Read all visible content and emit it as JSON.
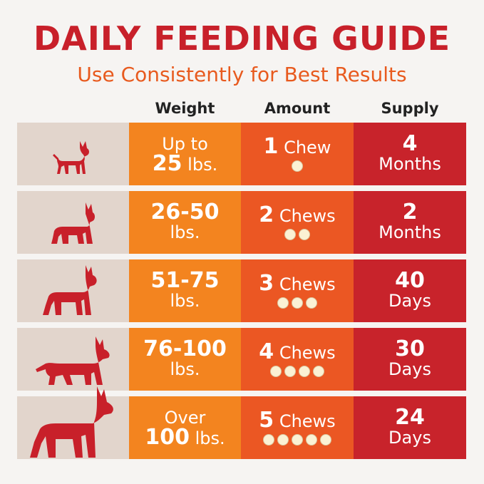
{
  "title": "DAILY FEEDING GUIDE",
  "subtitle": "Use Consistently for Best Results",
  "headers": {
    "weight": "Weight",
    "amount": "Amount",
    "supply": "Supply"
  },
  "colors": {
    "title": "#c8202a",
    "subtitle": "#e85a1e",
    "dog_cell": "#e2d5cc",
    "weight_cell": "#f3841f",
    "amount_cell": "#eb5723",
    "supply_cell": "#c8232b",
    "chew_dot": "#fbf1d4"
  },
  "rows": [
    {
      "dog_icon": "small-chihuahua-icon",
      "weight_line1": "Up to",
      "weight_line2": "25",
      "weight_line2_unit": "lbs.",
      "amount_count": "1",
      "amount_word": "Chew",
      "chews": 1,
      "supply_num": "4",
      "supply_unit": "Months"
    },
    {
      "dog_icon": "bulldog-icon",
      "weight_line1": "26-50",
      "weight_line2": "",
      "weight_line2_unit": "lbs.",
      "amount_count": "2",
      "amount_word": "Chews",
      "chews": 2,
      "supply_num": "2",
      "supply_unit": "Months"
    },
    {
      "dog_icon": "pitbull-icon",
      "weight_line1": "51-75",
      "weight_line2": "",
      "weight_line2_unit": "lbs.",
      "amount_count": "3",
      "amount_word": "Chews",
      "chews": 3,
      "supply_num": "40",
      "supply_unit": "Days"
    },
    {
      "dog_icon": "shepherd-icon",
      "weight_line1": "76-100",
      "weight_line2": "",
      "weight_line2_unit": "lbs.",
      "amount_count": "4",
      "amount_word": "Chews",
      "chews": 4,
      "supply_num": "30",
      "supply_unit": "Days"
    },
    {
      "dog_icon": "great-dane-icon",
      "weight_line1": "Over",
      "weight_line2": "100",
      "weight_line2_unit": "lbs.",
      "amount_count": "5",
      "amount_word": "Chews",
      "chews": 5,
      "supply_num": "24",
      "supply_unit": "Days"
    }
  ]
}
